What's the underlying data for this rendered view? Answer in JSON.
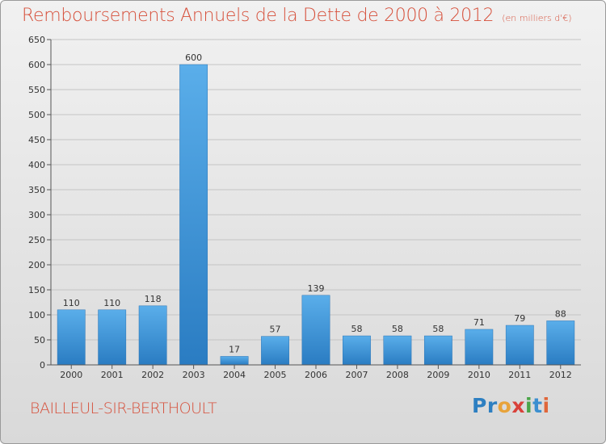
{
  "chart_data": {
    "type": "bar",
    "title": "Remboursements Annuels de la Dette de 2000 à 2012",
    "subtitle": "(en milliers d'€)",
    "categories": [
      "2000",
      "2001",
      "2002",
      "2003",
      "2004",
      "2005",
      "2006",
      "2007",
      "2008",
      "2009",
      "2010",
      "2011",
      "2012"
    ],
    "values": [
      110,
      110,
      118,
      600,
      17,
      57,
      139,
      58,
      58,
      58,
      71,
      79,
      88
    ],
    "ylim": [
      0,
      650
    ],
    "yticks": [
      0,
      50,
      100,
      150,
      200,
      250,
      300,
      350,
      400,
      450,
      500,
      550,
      600,
      650
    ],
    "grid": true,
    "bar_color": "#3b8fd6"
  },
  "footer": {
    "town": "BAILLEUL-SIR-BERTHOULT",
    "logo_parts": [
      "Pr",
      "o",
      "x",
      "i",
      "t",
      "i"
    ]
  }
}
